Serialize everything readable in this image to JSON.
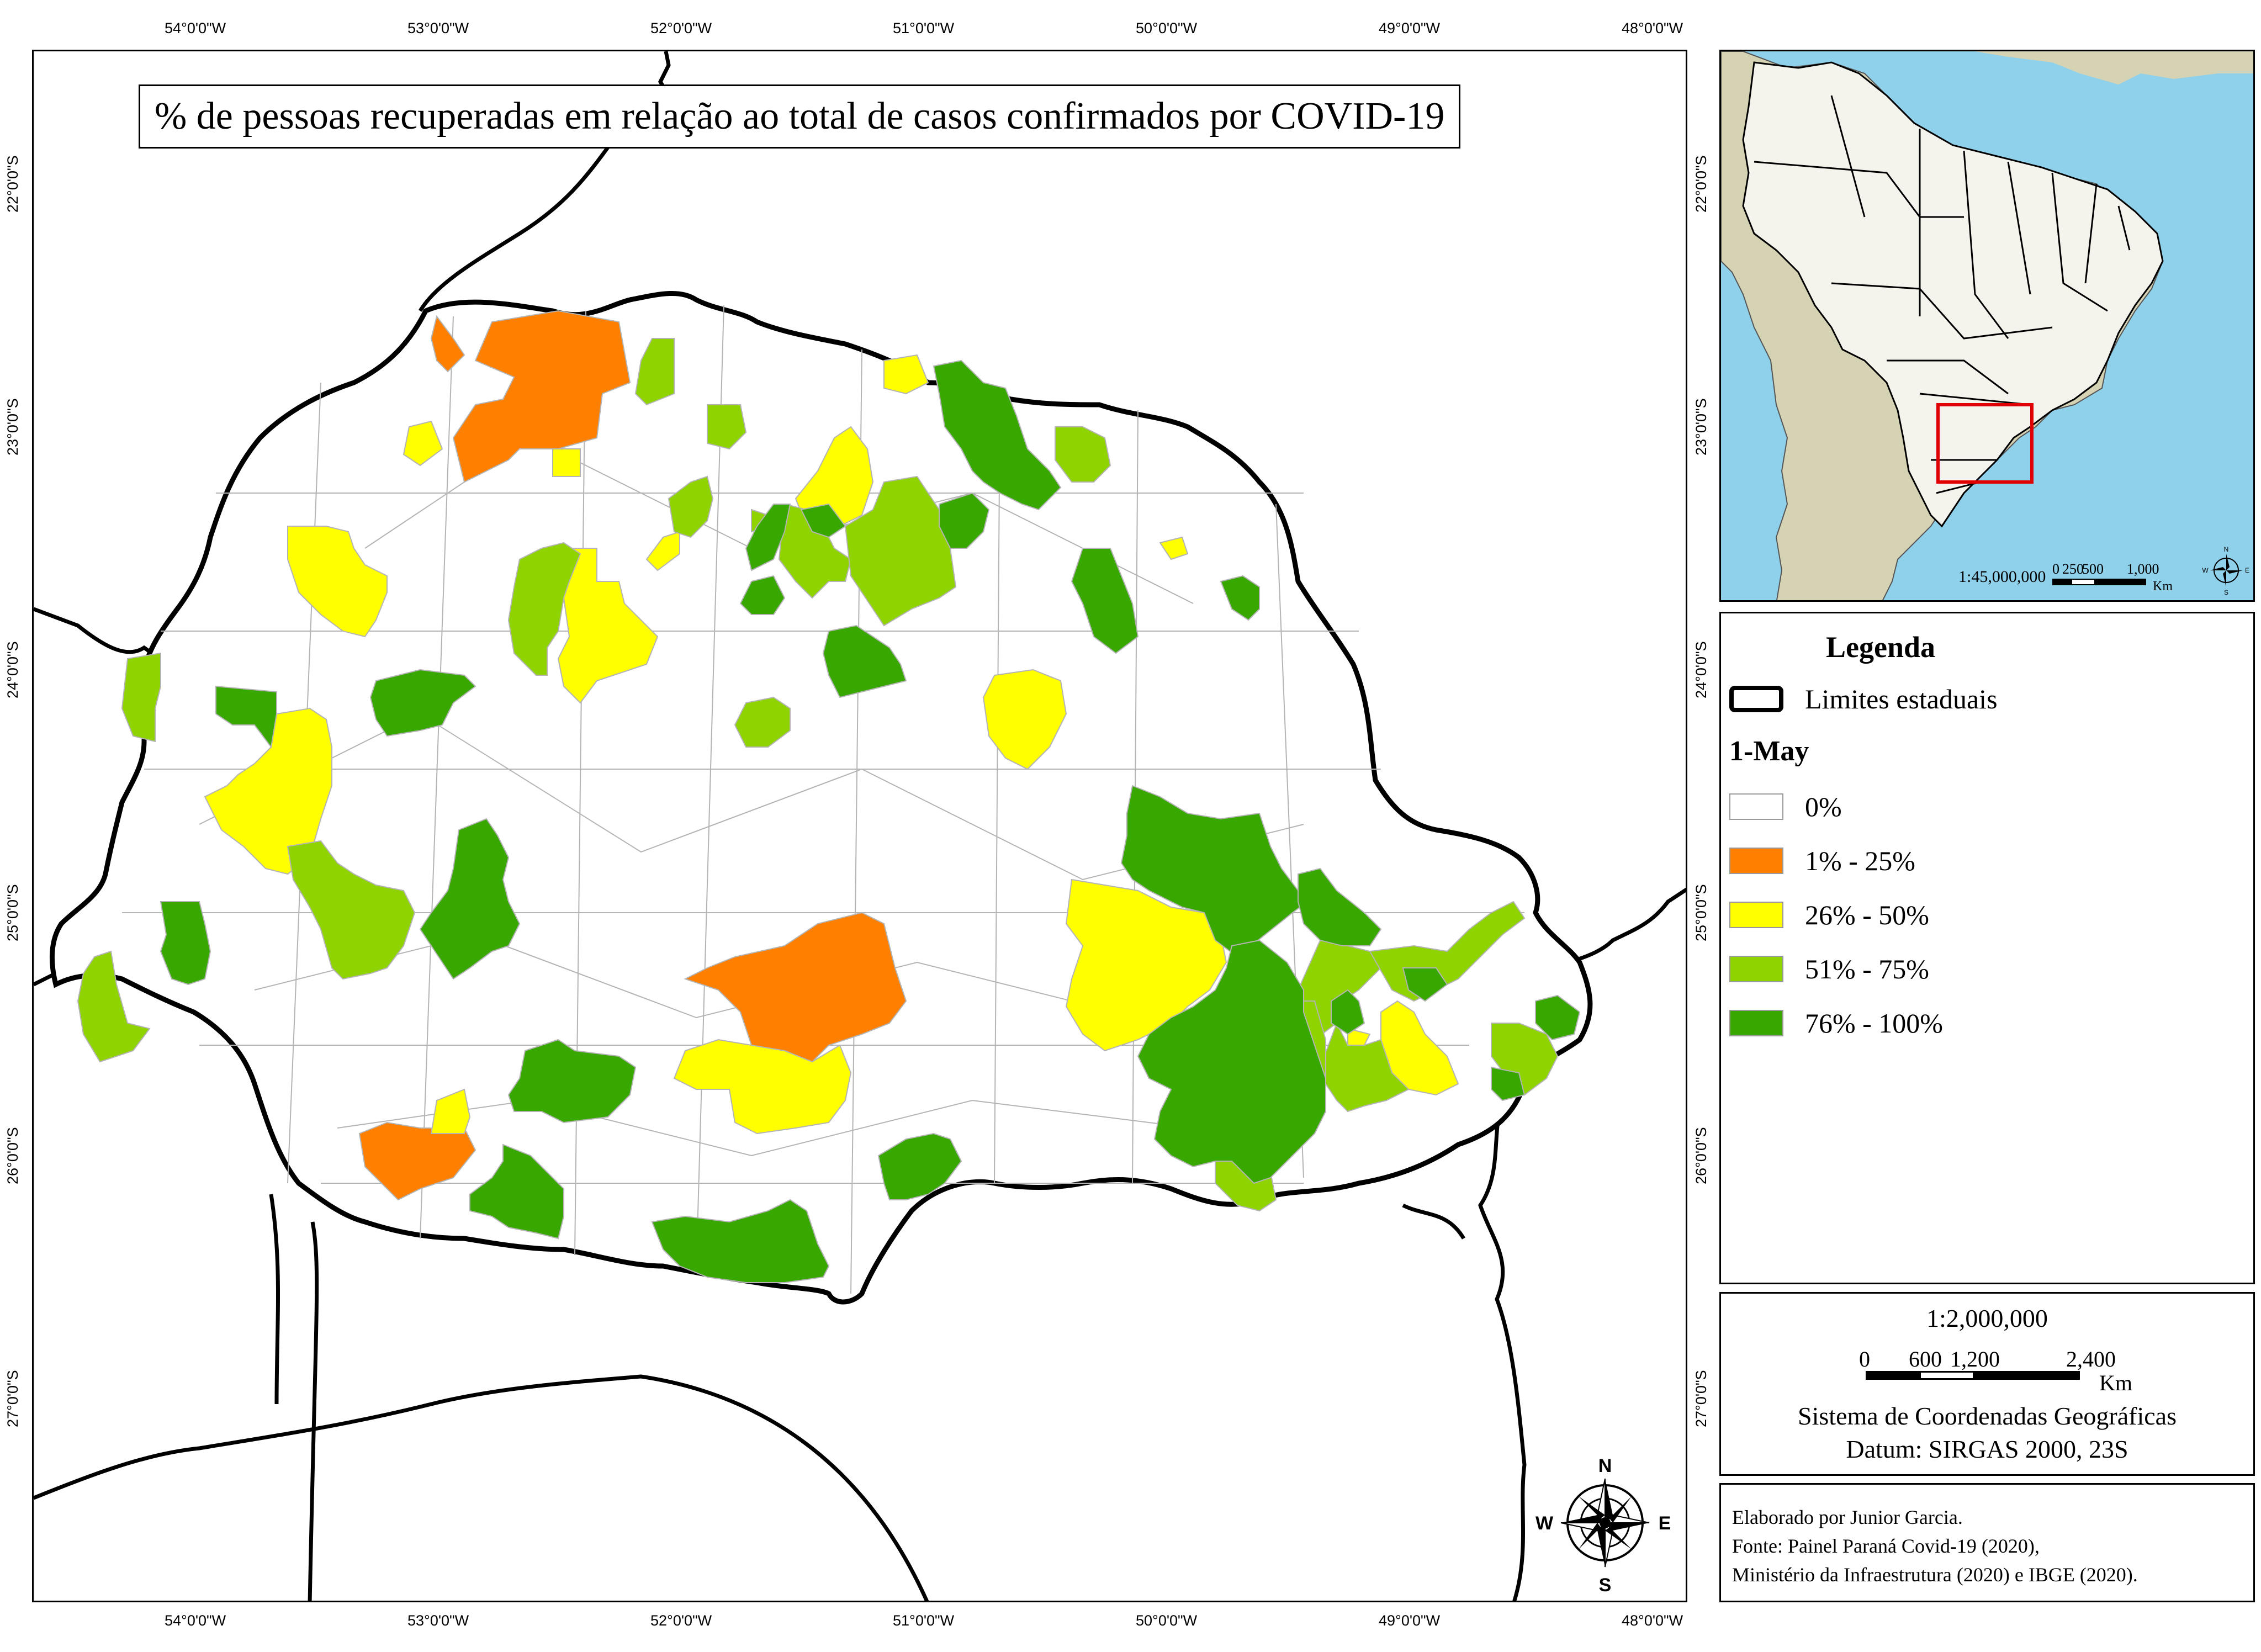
{
  "title": "% de pessoas recuperadas em relação ao total de casos confirmados por COVID-19",
  "colors": {
    "sea": "#8fd1ea",
    "land": "#d6d2b4",
    "brazil": "#f4f3ec",
    "inset_box": "#e00000",
    "municipal_borders": "#b4b4b4",
    "state_borders": "#000000"
  },
  "axes": {
    "longitudes": [
      "54°0'0\"W",
      "53°0'0\"W",
      "52°0'0\"W",
      "51°0'0\"W",
      "50°0'0\"W",
      "49°0'0\"W",
      "48°0'0\"W"
    ],
    "latitudes": [
      "22°0'0\"S",
      "23°0'0\"S",
      "24°0'0\"S",
      "25°0'0\"S",
      "26°0'0\"S",
      "27°0'0\"S"
    ]
  },
  "legend": {
    "title": "Legenda",
    "state_limits_label": "Limites estaduais",
    "date_label": "1-May",
    "classes": [
      {
        "label": "0%",
        "color": "#ffffff"
      },
      {
        "label": "1% - 25%",
        "color": "#ff8000"
      },
      {
        "label": "26% - 50%",
        "color": "#ffff00"
      },
      {
        "label": "51% - 75%",
        "color": "#8fd400"
      },
      {
        "label": "76% - 100%",
        "color": "#38a800"
      }
    ]
  },
  "inset": {
    "scale_ratio": "1:45,000,000",
    "scale_ticks": [
      "0",
      "250",
      "500",
      "1,000"
    ],
    "scale_unit": "Km",
    "compass": [
      "N",
      "S",
      "E",
      "W"
    ]
  },
  "scale": {
    "ratio": "1:2,000,000",
    "ticks": [
      "0",
      "600",
      "1,200",
      "2,400"
    ],
    "unit": "Km",
    "coordinate_system": "Sistema de Coordenadas Geográficas",
    "datum": "Datum: SIRGAS 2000, 23S"
  },
  "compass": {
    "north": "N",
    "south": "S",
    "east": "E",
    "west": "W"
  },
  "credits": {
    "author": "Elaborado por Junior Garcia.",
    "source_1": "Fonte: Painel Paraná Covid-19 (2020),",
    "source_2": "Ministério da Infraestrutura (2020) e IBGE (2020)."
  }
}
